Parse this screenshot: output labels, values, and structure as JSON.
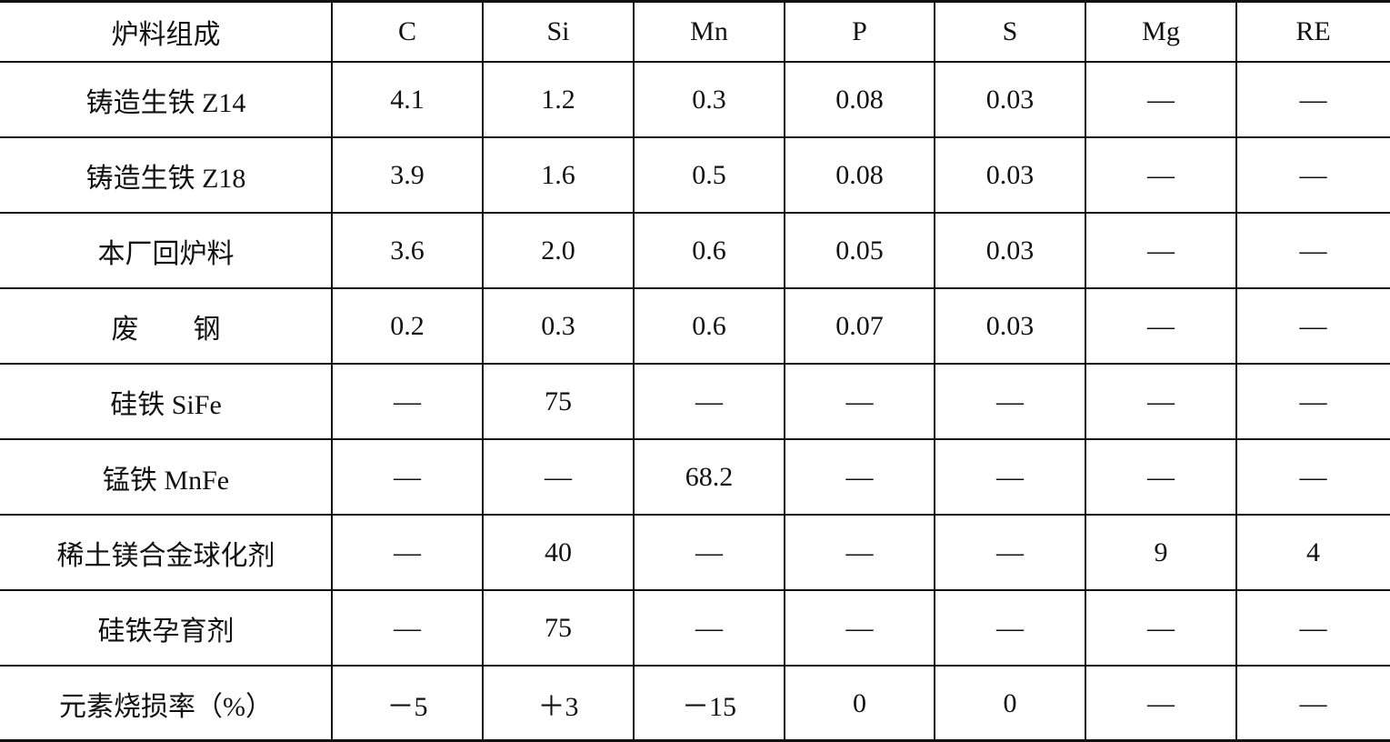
{
  "table": {
    "header": [
      "炉料组成",
      "C",
      "Si",
      "Mn",
      "P",
      "S",
      "Mg",
      "RE"
    ],
    "rows": [
      [
        "铸造生铁 Z14",
        "4.1",
        "1.2",
        "0.3",
        "0.08",
        "0.03",
        "—",
        "—"
      ],
      [
        "铸造生铁 Z18",
        "3.9",
        "1.6",
        "0.5",
        "0.08",
        "0.03",
        "—",
        "—"
      ],
      [
        "本厂回炉料",
        "3.6",
        "2.0",
        "0.6",
        "0.05",
        "0.03",
        "—",
        "—"
      ],
      [
        "废　　钢",
        "0.2",
        "0.3",
        "0.6",
        "0.07",
        "0.03",
        "—",
        "—"
      ],
      [
        "硅铁 SiFe",
        "—",
        "75",
        "—",
        "—",
        "—",
        "—",
        "—"
      ],
      [
        "锰铁 MnFe",
        "—",
        "—",
        "68.2",
        "—",
        "—",
        "—",
        "—"
      ],
      [
        "稀土镁合金球化剂",
        "—",
        "40",
        "—",
        "—",
        "—",
        "9",
        "4"
      ],
      [
        "硅铁孕育剂",
        "—",
        "75",
        "—",
        "—",
        "—",
        "—",
        "—"
      ],
      [
        "元素烧损率（%）",
        "－5",
        "＋3",
        "－15",
        "0",
        "0",
        "—",
        "—"
      ]
    ]
  }
}
